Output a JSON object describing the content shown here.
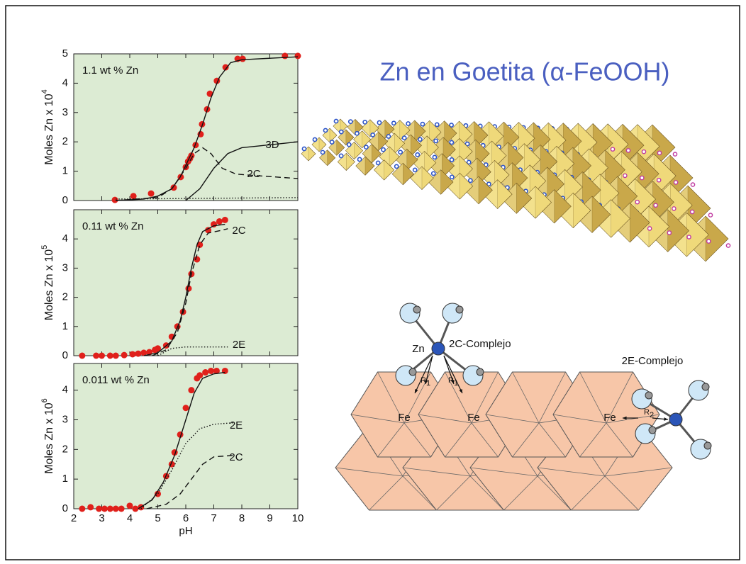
{
  "title": "Zn en Goetita  (α-FeOOH)",
  "diagram": {
    "zn": "Zn",
    "complex_2c": "2C-Complejo",
    "complex_2e": "2E-Complejo",
    "fe_1": "Fe",
    "fe_2": "Fe",
    "fe_3": "Fe",
    "r_1a": "R",
    "r_1a_sub": "1",
    "r_1b": "R",
    "r_1b_sub": "1",
    "r_2": "R",
    "r_2_sub": "2"
  },
  "chart_data": [
    {
      "type": "line",
      "annotation": "1.1 wt % Zn",
      "ylabel": "Moles Zn x 10",
      "ylabel_exp": "4",
      "xlim": [
        2,
        10
      ],
      "xticks": [
        2,
        3,
        4,
        5,
        6,
        7,
        8,
        9,
        10
      ],
      "ylim": [
        0,
        5
      ],
      "yticks": [
        0,
        1,
        2,
        3,
        4,
        5
      ],
      "series": [
        {
          "style": "points",
          "color": "#e0201b",
          "x": [
            3.47,
            4.13,
            4.76,
            5.57,
            5.82,
            6.0,
            6.08,
            6.15,
            6.2,
            6.35,
            6.53,
            6.58,
            6.76,
            6.86,
            7.11,
            7.42,
            7.85,
            8.03,
            9.54,
            10
          ],
          "values": [
            0.02,
            0.15,
            0.24,
            0.44,
            0.8,
            1.14,
            1.33,
            1.43,
            1.53,
            1.89,
            2.26,
            2.6,
            3.11,
            3.64,
            4.08,
            4.54,
            4.83,
            4.83,
            4.93,
            4.93
          ]
        },
        {
          "style": "solid",
          "color": "#111111",
          "x": [
            3.5,
            4.5,
            5,
            5.5,
            5.8,
            6,
            6.3,
            6.6,
            6.9,
            7.2,
            7.6,
            8,
            10
          ],
          "values": [
            0,
            0.05,
            0.15,
            0.4,
            0.8,
            1.2,
            1.8,
            2.6,
            3.5,
            4.2,
            4.7,
            4.8,
            4.9
          ]
        },
        {
          "style": "dashed",
          "color": "#111111",
          "name": "2C",
          "x": [
            3.5,
            5,
            5.5,
            6,
            6.3,
            6.6,
            6.9,
            7.3,
            7.8,
            8.5,
            10
          ],
          "values": [
            0,
            0.1,
            0.4,
            1.1,
            1.6,
            1.8,
            1.6,
            1.1,
            0.9,
            0.85,
            0.75
          ]
        },
        {
          "style": "solid",
          "color": "#111111",
          "name": "3D",
          "x": [
            6,
            6.5,
            7,
            7.5,
            8,
            8.5,
            10
          ],
          "values": [
            0,
            0.4,
            1.1,
            1.6,
            1.8,
            1.85,
            2.0
          ]
        },
        {
          "style": "dotted",
          "color": "#111111",
          "x": [
            3.5,
            10
          ],
          "values": [
            0.05,
            0.1
          ]
        }
      ]
    },
    {
      "type": "line",
      "annotation": "0.11 wt % Zn",
      "ylabel": "Moles Zn x 10",
      "ylabel_exp": "5",
      "xlim": [
        2,
        10
      ],
      "xticks": [
        2,
        3,
        4,
        5,
        6,
        7,
        8,
        9,
        10
      ],
      "ylim": [
        0,
        5
      ],
      "yticks": [
        0,
        1,
        2,
        3,
        4
      ],
      "series": [
        {
          "style": "points",
          "color": "#e0201b",
          "x": [
            2.3,
            2.8,
            3.0,
            3.3,
            3.5,
            3.8,
            4.1,
            4.3,
            4.5,
            4.7,
            4.9,
            5.0,
            5.3,
            5.5,
            5.7,
            5.9,
            6.1,
            6.2,
            6.4,
            6.5,
            6.8,
            7.0,
            7.2,
            7.4
          ],
          "values": [
            0,
            0,
            0,
            0,
            0,
            0.02,
            0.05,
            0.07,
            0.1,
            0.12,
            0.2,
            0.25,
            0.35,
            0.65,
            1.0,
            1.5,
            2.3,
            2.8,
            3.3,
            3.8,
            4.3,
            4.5,
            4.6,
            4.65
          ]
        },
        {
          "style": "solid",
          "color": "#111111",
          "x": [
            4.5,
            5,
            5.5,
            5.8,
            6.0,
            6.2,
            6.4,
            6.6,
            7,
            7.4
          ],
          "values": [
            0,
            0.1,
            0.5,
            1.2,
            2.0,
            3.0,
            3.8,
            4.25,
            4.45,
            4.5
          ]
        },
        {
          "style": "dashed",
          "color": "#111111",
          "name": "2C",
          "x": [
            4.8,
            5.3,
            5.7,
            6,
            6.2,
            6.5,
            6.8,
            7.3,
            7.5
          ],
          "values": [
            0,
            0.2,
            0.8,
            1.8,
            2.8,
            3.8,
            4.2,
            4.3,
            4.35
          ]
        },
        {
          "style": "dotted",
          "color": "#111111",
          "name": "2E",
          "x": [
            5,
            5.5,
            6,
            7.5
          ],
          "values": [
            0,
            0.25,
            0.3,
            0.3
          ]
        }
      ]
    },
    {
      "type": "line",
      "annotation": "0.011 wt % Zn",
      "ylabel": "Moles Zn x 10",
      "ylabel_exp": "6",
      "xlabel": "pH",
      "xlim": [
        2,
        10
      ],
      "xticks": [
        2,
        3,
        4,
        5,
        6,
        7,
        8,
        9,
        10
      ],
      "ylim": [
        0,
        4.9
      ],
      "yticks": [
        0,
        1,
        2,
        3,
        4
      ],
      "series": [
        {
          "style": "points",
          "color": "#e0201b",
          "x": [
            2.3,
            2.6,
            2.9,
            3.1,
            3.3,
            3.5,
            3.7,
            4,
            4.2,
            4.4,
            5,
            5.3,
            5.5,
            5.6,
            5.8,
            6,
            6.2,
            6.4,
            6.5,
            6.7,
            6.9,
            7.1,
            7.4
          ],
          "values": [
            0,
            0.05,
            0,
            0,
            0,
            0,
            0,
            0.1,
            0,
            0.05,
            0.5,
            1.1,
            1.5,
            1.9,
            2.5,
            3.4,
            4.0,
            4.4,
            4.5,
            4.6,
            4.65,
            4.65,
            4.65
          ]
        },
        {
          "style": "solid",
          "color": "#111111",
          "x": [
            4.3,
            4.8,
            5.2,
            5.6,
            6,
            6.3,
            6.6,
            7.0,
            7.4
          ],
          "values": [
            0,
            0.3,
            0.9,
            1.8,
            3.0,
            3.9,
            4.4,
            4.55,
            4.6
          ]
        },
        {
          "style": "dotted",
          "color": "#111111",
          "name": "2E",
          "x": [
            4.4,
            5,
            5.5,
            6,
            6.5,
            7,
            7.7
          ],
          "values": [
            0,
            0.5,
            1.3,
            2.2,
            2.7,
            2.85,
            2.9
          ]
        },
        {
          "style": "dashed",
          "color": "#111111",
          "name": "2C",
          "x": [
            4.6,
            5.3,
            5.8,
            6.2,
            6.6,
            7,
            7.7
          ],
          "values": [
            0,
            0.15,
            0.5,
            1.0,
            1.5,
            1.75,
            1.8
          ]
        }
      ]
    }
  ]
}
